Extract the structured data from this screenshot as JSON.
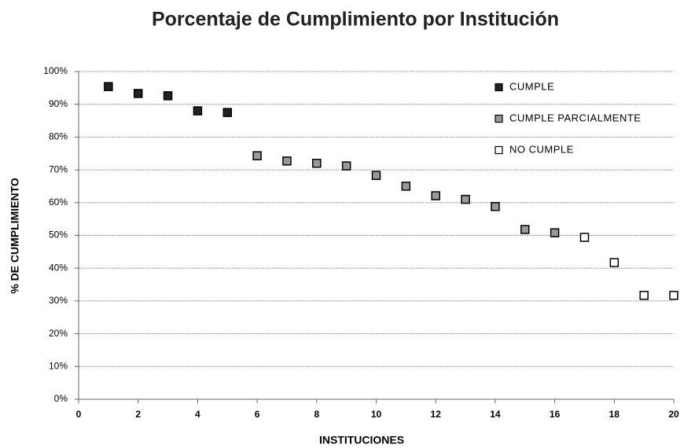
{
  "chart_data": {
    "type": "scatter",
    "title": "Porcentaje de  Cumplimiento por Institución",
    "xlabel": "INSTITUCIONES",
    "ylabel": "% DE CUMPLIMIENTO",
    "xlim": [
      0,
      20
    ],
    "xticks": [
      0,
      2,
      4,
      6,
      8,
      10,
      12,
      14,
      16,
      18,
      20
    ],
    "ylim": [
      0,
      100
    ],
    "yticks": [
      {
        "value": 0,
        "label": "0%"
      },
      {
        "value": 10,
        "label": "10%"
      },
      {
        "value": 20,
        "label": "20%"
      },
      {
        "value": 30,
        "label": "30%"
      },
      {
        "value": 40,
        "label": "40%"
      },
      {
        "value": 50,
        "label": "50%"
      },
      {
        "value": 60,
        "label": "60%"
      },
      {
        "value": 70,
        "label": "70%"
      },
      {
        "value": 80,
        "label": "80%"
      },
      {
        "value": 90,
        "label": "90%"
      },
      {
        "value": 100,
        "label": "100%"
      }
    ],
    "grid": true,
    "legend": "upper right",
    "series": [
      {
        "name": "CUMPLE",
        "color": "#222222",
        "x": [
          1,
          2,
          3,
          4,
          5
        ],
        "values": [
          95.4,
          93.3,
          92.6,
          88,
          87.5
        ]
      },
      {
        "name": "CUMPLE PARCIALMENTE",
        "color": "#999999",
        "x": [
          6,
          7,
          8,
          9,
          10,
          11,
          12,
          13,
          14,
          15,
          16
        ],
        "values": [
          74.3,
          72.7,
          72,
          71.2,
          68.3,
          65,
          62.1,
          61,
          58.8,
          51.8,
          50.8
        ]
      },
      {
        "name": "NO CUMPLE",
        "color": "#ffffff",
        "x": [
          17,
          18,
          19,
          20
        ],
        "values": [
          49.4,
          41.7,
          31.7,
          31.7
        ]
      }
    ]
  }
}
